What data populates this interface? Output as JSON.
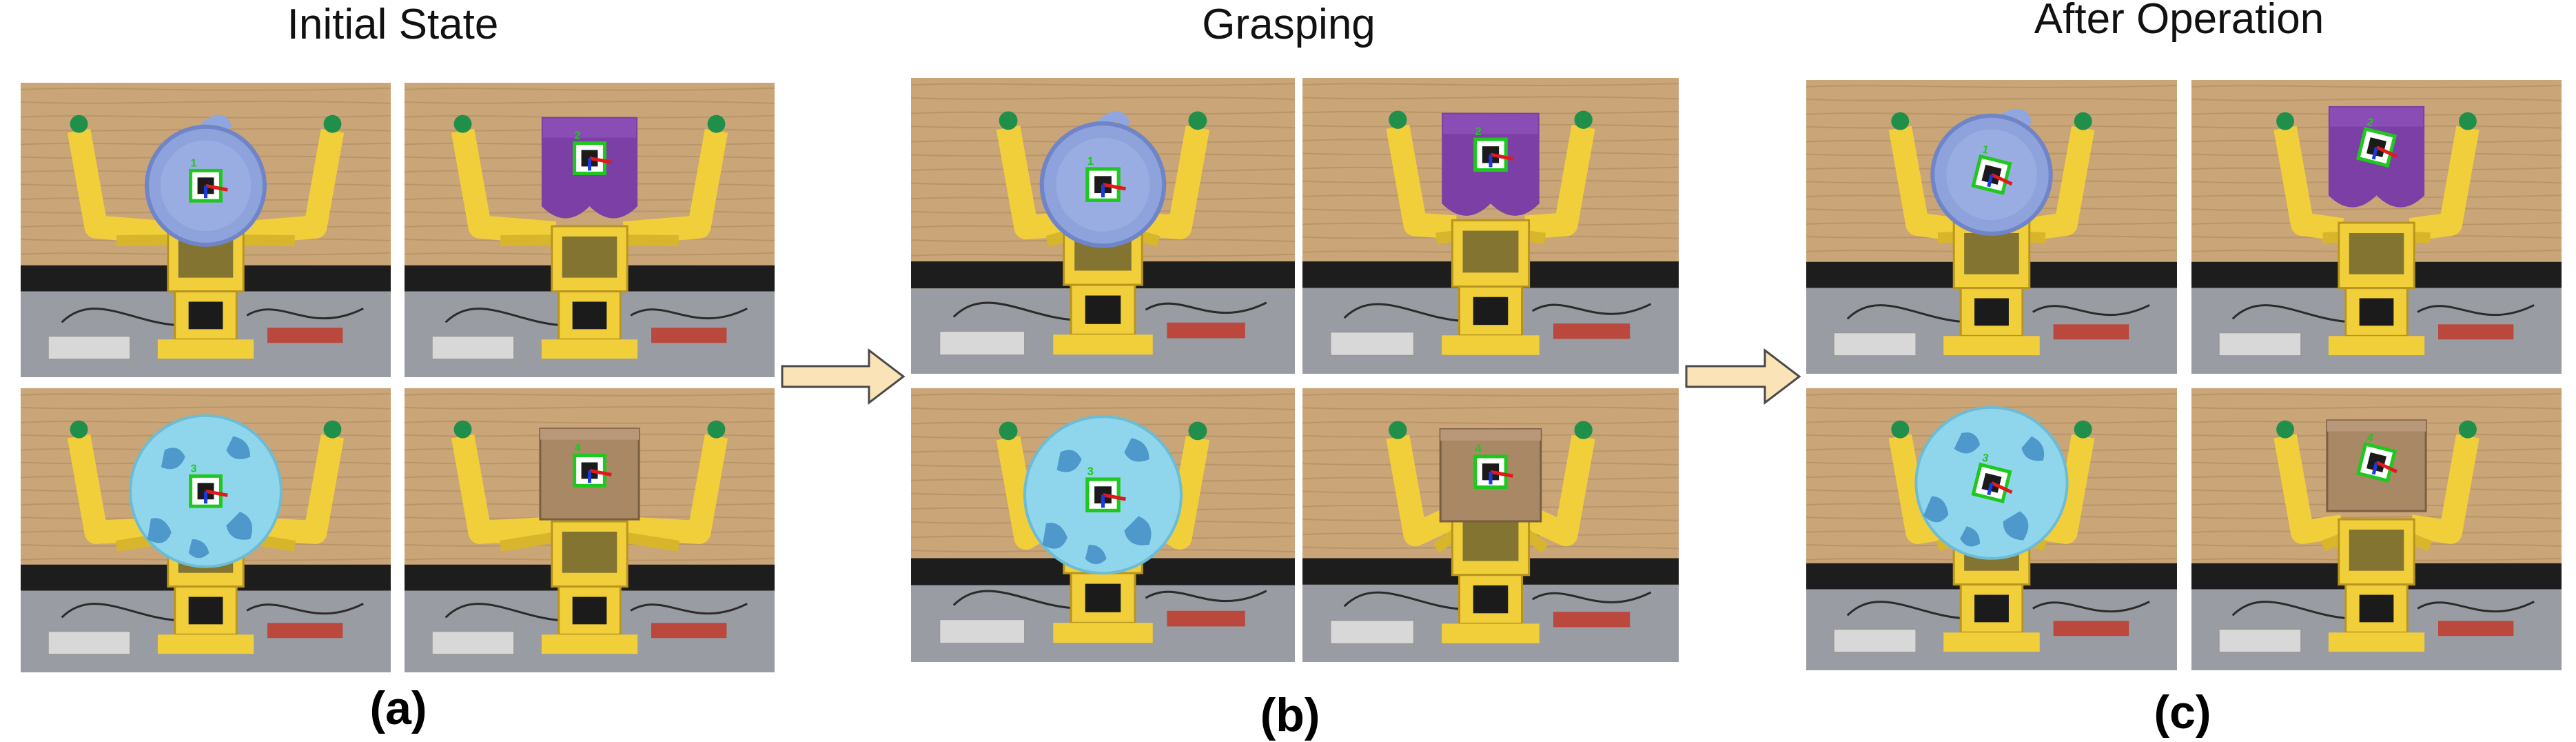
{
  "panels": [
    {
      "id": "a",
      "title": "Initial State",
      "letter": "(a)",
      "photos": [
        {
          "object": "blue-mug",
          "marker_id": "1"
        },
        {
          "object": "purple-pouch",
          "marker_id": "2"
        },
        {
          "object": "soccer-ball",
          "marker_id": "3"
        },
        {
          "object": "cardboard-box",
          "marker_id": "4"
        }
      ]
    },
    {
      "id": "b",
      "title": "Grasping",
      "letter": "(b)",
      "photos": [
        {
          "object": "blue-mug",
          "marker_id": "1"
        },
        {
          "object": "purple-pouch",
          "marker_id": "2"
        },
        {
          "object": "soccer-ball",
          "marker_id": "3"
        },
        {
          "object": "cardboard-box",
          "marker_id": "4"
        }
      ]
    },
    {
      "id": "c",
      "title": "After Operation",
      "letter": "(c)",
      "photos": [
        {
          "object": "blue-mug",
          "marker_id": "1"
        },
        {
          "object": "purple-pouch",
          "marker_id": "2"
        },
        {
          "object": "soccer-ball",
          "marker_id": "3"
        },
        {
          "object": "cardboard-box",
          "marker_id": "4"
        }
      ]
    }
  ],
  "colors": {
    "wood_wall": "#c9a577",
    "wall_strip": "#1d1d1d",
    "table": "#9a9ca3",
    "gripper": "#f1cf3a",
    "fingertip": "#1f8f4a",
    "marker": "#1ec81e",
    "axis_x": "#e01a1a",
    "axis_y": "#1a3ae0",
    "arrow_fill": "#fbe3b8",
    "arrow_stroke": "#4a4a4a"
  }
}
